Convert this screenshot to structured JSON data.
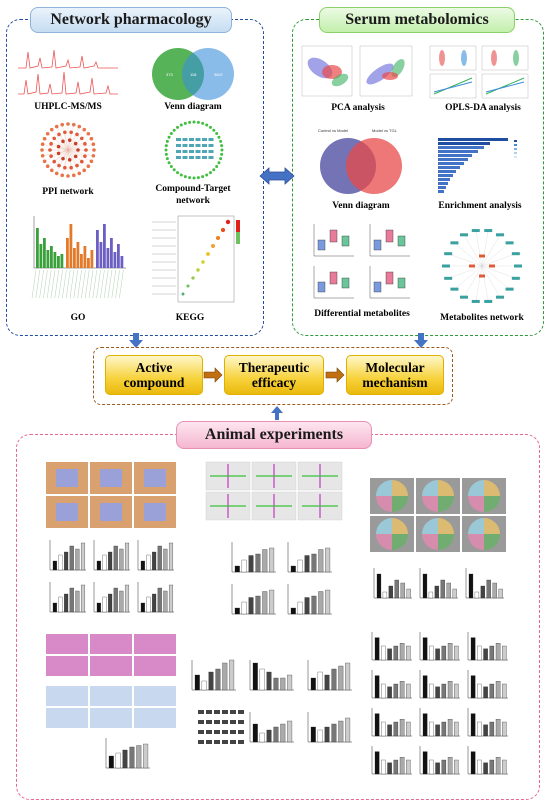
{
  "network_pharmacology": {
    "title": "Network pharmacology",
    "items": {
      "uhplc": "UHPLC-MS/MS",
      "venn": "Venn diagram",
      "ppi": "PPI network",
      "compound_target_line1": "Compound-Target",
      "compound_target_line2": "network",
      "go": "GO",
      "kegg": "KEGG"
    },
    "venn_counts": [
      "373",
      "118",
      "3847"
    ]
  },
  "serum_metabolomics": {
    "title": "Serum metabolomics",
    "items": {
      "pca": "PCA analysis",
      "oplsda": "OPLS-DA analysis",
      "venn": "Venn diagram",
      "enrichment": "Enrichment analysis",
      "differential": "Differential metabolites",
      "network": "Metabolites network"
    },
    "venn_headers": [
      "Control vs Model",
      "Model vs TGL"
    ]
  },
  "flow": {
    "active_compound_line1": "Active",
    "active_compound_line2": "compound",
    "therapeutic_line1": "Therapeutic",
    "therapeutic_line2": "efficacy",
    "molecular_line1": "Molecular",
    "molecular_line2": "mechanism"
  },
  "animal": {
    "title": "Animal experiments"
  },
  "colors": {
    "np_title_bg": "#d4e6f7",
    "np_border": "#1f4ea0",
    "sm_title_bg": "#d6f5c8",
    "sm_border": "#2c9a3a",
    "animal_title_bg": "#f8c9dd",
    "animal_border": "#e8668f",
    "flow_border": "#9a5a1c",
    "arrow_blue": "#4472c4",
    "arrow_brown": "#c07010"
  }
}
